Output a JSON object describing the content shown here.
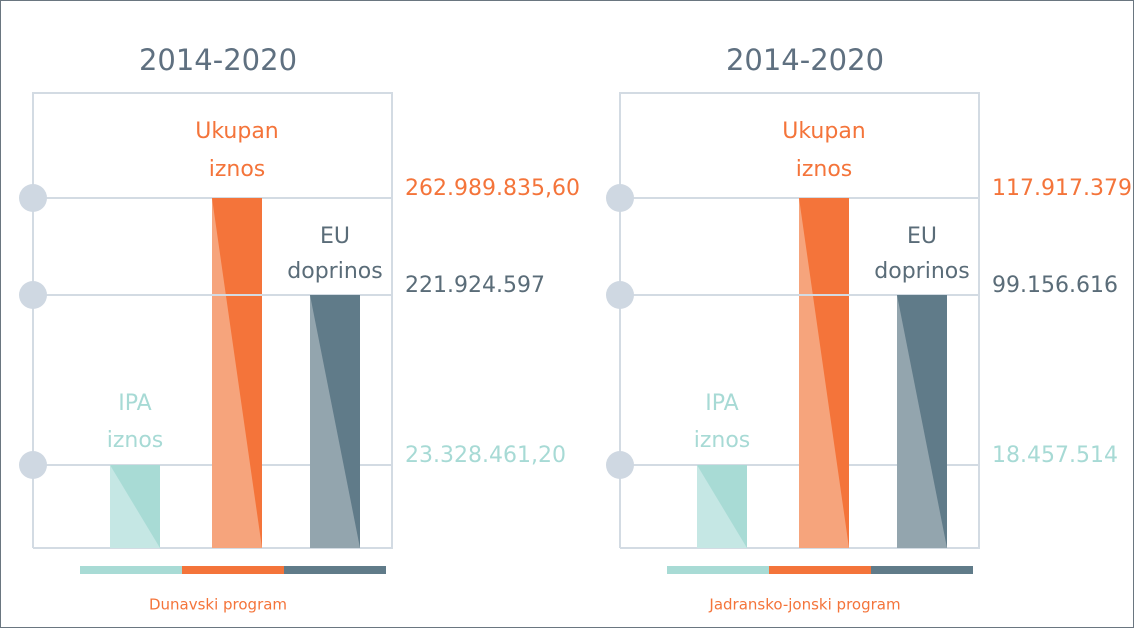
{
  "panels": [
    {
      "title": "2014-2020",
      "caption": "Dunavski program",
      "items": [
        {
          "label": [
            "IPA",
            "iznos"
          ],
          "value": "23.328.461,20"
        },
        {
          "label": [
            "Ukupan",
            "iznos"
          ],
          "value": "262.989.835,60"
        },
        {
          "label": [
            "EU",
            "doprinos"
          ],
          "value": "221.924.597"
        }
      ]
    },
    {
      "title": "2014-2020",
      "caption": "Jadransko-jonski program",
      "items": [
        {
          "label": [
            "IPA",
            "iznos"
          ],
          "value": "18.457.514"
        },
        {
          "label": [
            "Ukupan",
            "iznos"
          ],
          "value": "117.917.379"
        },
        {
          "label": [
            "EU",
            "doprinos"
          ],
          "value": "99.156.616"
        }
      ]
    }
  ]
}
